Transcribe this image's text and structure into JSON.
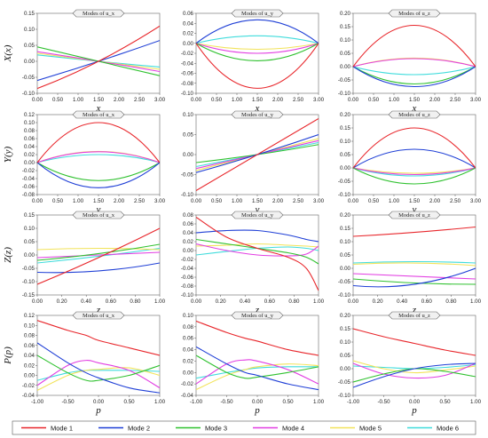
{
  "legend": [
    {
      "name": "Mode 1",
      "color": "#e8262b"
    },
    {
      "name": "Mode 2",
      "color": "#1f3fd6"
    },
    {
      "name": "Mode 3",
      "color": "#2fc12f"
    },
    {
      "name": "Mode 4",
      "color": "#e23ee2"
    },
    {
      "name": "Mode 5",
      "color": "#f2e35a"
    },
    {
      "name": "Mode 6",
      "color": "#3fdcdc"
    }
  ],
  "chart_data": [
    {
      "type": "line",
      "row": 0,
      "col": 0,
      "title": "Modes of u_x",
      "xlabel": "x",
      "ylabel": "X(x)",
      "xlim": [
        0,
        3
      ],
      "ylim": [
        -0.1,
        0.15
      ],
      "xticks": [
        0,
        0.5,
        1,
        1.5,
        2,
        2.5,
        3
      ],
      "yticks": [
        -0.1,
        -0.05,
        0,
        0.05,
        0.1,
        0.15
      ],
      "xfmt": 2,
      "yfmt": 2,
      "x": [
        0,
        1.5,
        3
      ],
      "series": [
        {
          "name": "Mode 1",
          "y": [
            -0.085,
            0.0,
            0.11
          ]
        },
        {
          "name": "Mode 2",
          "y": [
            -0.06,
            0.0,
            0.065
          ]
        },
        {
          "name": "Mode 3",
          "y": [
            0.045,
            0.0,
            -0.045
          ]
        },
        {
          "name": "Mode 4",
          "y": [
            0.03,
            0.0,
            -0.032
          ]
        },
        {
          "name": "Mode 5",
          "y": [
            0.025,
            0.0,
            -0.025
          ]
        },
        {
          "name": "Mode 6",
          "y": [
            0.02,
            0.0,
            -0.018
          ]
        }
      ]
    },
    {
      "type": "line",
      "row": 0,
      "col": 1,
      "title": "Modes of u_y",
      "xlabel": "x",
      "ylabel": "",
      "xlim": [
        0,
        3
      ],
      "ylim": [
        -0.1,
        0.06
      ],
      "xticks": [
        0,
        0.5,
        1,
        1.5,
        2,
        2.5,
        3
      ],
      "yticks": [
        -0.1,
        -0.08,
        -0.06,
        -0.04,
        -0.02,
        0,
        0.02,
        0.04,
        0.06
      ],
      "xfmt": 2,
      "yfmt": 2,
      "x": [
        0,
        1.5,
        3
      ],
      "series": [
        {
          "name": "Mode 1",
          "y": [
            0,
            -0.09,
            0
          ]
        },
        {
          "name": "Mode 2",
          "y": [
            0,
            0.047,
            0
          ]
        },
        {
          "name": "Mode 3",
          "y": [
            0,
            -0.035,
            0
          ]
        },
        {
          "name": "Mode 4",
          "y": [
            0,
            -0.02,
            0
          ]
        },
        {
          "name": "Mode 5",
          "y": [
            0,
            -0.012,
            0
          ]
        },
        {
          "name": "Mode 6",
          "y": [
            0,
            0.015,
            0
          ]
        }
      ]
    },
    {
      "type": "line",
      "row": 0,
      "col": 2,
      "title": "Modes of u_z",
      "xlabel": "x",
      "ylabel": "",
      "xlim": [
        0,
        3
      ],
      "ylim": [
        -0.1,
        0.2
      ],
      "xticks": [
        0,
        0.5,
        1,
        1.5,
        2,
        2.5,
        3
      ],
      "yticks": [
        -0.1,
        -0.05,
        0,
        0.05,
        0.1,
        0.15,
        0.2
      ],
      "xfmt": 2,
      "yfmt": 2,
      "x": [
        0,
        1.5,
        3
      ],
      "series": [
        {
          "name": "Mode 1",
          "y": [
            0,
            0.155,
            0
          ]
        },
        {
          "name": "Mode 2",
          "y": [
            0,
            -0.075,
            0
          ]
        },
        {
          "name": "Mode 3",
          "y": [
            0,
            -0.065,
            0
          ]
        },
        {
          "name": "Mode 4",
          "y": [
            0,
            0.03,
            0
          ]
        },
        {
          "name": "Mode 5",
          "y": [
            0,
            0.032,
            0
          ]
        },
        {
          "name": "Mode 6",
          "y": [
            0,
            -0.03,
            0
          ]
        }
      ]
    },
    {
      "type": "line",
      "row": 1,
      "col": 0,
      "title": "Modes of u_x",
      "xlabel": "y",
      "ylabel": "Y(y)",
      "xlim": [
        0,
        3
      ],
      "ylim": [
        -0.08,
        0.12
      ],
      "xticks": [
        0,
        0.5,
        1,
        1.5,
        2,
        2.5,
        3
      ],
      "yticks": [
        -0.08,
        -0.06,
        -0.04,
        -0.02,
        0,
        0.02,
        0.04,
        0.06,
        0.08,
        0.1,
        0.12
      ],
      "xfmt": 2,
      "yfmt": 2,
      "x": [
        0,
        1.5,
        3
      ],
      "series": [
        {
          "name": "Mode 1",
          "y": [
            0,
            0.1,
            0
          ]
        },
        {
          "name": "Mode 2",
          "y": [
            0,
            -0.063,
            0
          ]
        },
        {
          "name": "Mode 3",
          "y": [
            0,
            -0.045,
            0
          ]
        },
        {
          "name": "Mode 4",
          "y": [
            0,
            0.027,
            0
          ]
        },
        {
          "name": "Mode 5",
          "y": [
            0,
            0.028,
            0
          ]
        },
        {
          "name": "Mode 6",
          "y": [
            0,
            0.02,
            0
          ]
        }
      ]
    },
    {
      "type": "line",
      "row": 1,
      "col": 1,
      "title": "Modes of u_y",
      "xlabel": "y",
      "ylabel": "",
      "xlim": [
        0,
        3
      ],
      "ylim": [
        -0.1,
        0.1
      ],
      "xticks": [
        0,
        0.5,
        1,
        1.5,
        2,
        2.5,
        3
      ],
      "yticks": [
        -0.1,
        -0.05,
        0,
        0.05,
        0.1
      ],
      "xfmt": 2,
      "yfmt": 2,
      "x": [
        0,
        1.5,
        3
      ],
      "series": [
        {
          "name": "Mode 1",
          "y": [
            -0.09,
            0,
            0.09
          ]
        },
        {
          "name": "Mode 2",
          "y": [
            -0.045,
            0,
            0.05
          ]
        },
        {
          "name": "Mode 3",
          "y": [
            -0.02,
            0,
            0.025
          ]
        },
        {
          "name": "Mode 4",
          "y": [
            -0.035,
            0,
            0.035
          ]
        },
        {
          "name": "Mode 5",
          "y": [
            -0.04,
            0,
            0.04
          ]
        },
        {
          "name": "Mode 6",
          "y": [
            -0.03,
            0,
            0.03
          ]
        }
      ]
    },
    {
      "type": "line",
      "row": 1,
      "col": 2,
      "title": "Modes of u_z",
      "xlabel": "y",
      "ylabel": "",
      "xlim": [
        0,
        3
      ],
      "ylim": [
        -0.1,
        0.2
      ],
      "xticks": [
        0,
        0.5,
        1,
        1.5,
        2,
        2.5,
        3
      ],
      "yticks": [
        -0.1,
        -0.05,
        0,
        0.05,
        0.1,
        0.15,
        0.2
      ],
      "xfmt": 2,
      "yfmt": 2,
      "x": [
        0,
        1.5,
        3
      ],
      "series": [
        {
          "name": "Mode 1",
          "y": [
            0,
            0.15,
            0
          ]
        },
        {
          "name": "Mode 2",
          "y": [
            0,
            0.07,
            0
          ]
        },
        {
          "name": "Mode 3",
          "y": [
            0,
            -0.06,
            0
          ]
        },
        {
          "name": "Mode 4",
          "y": [
            0,
            -0.025,
            0
          ]
        },
        {
          "name": "Mode 5",
          "y": [
            0,
            -0.02,
            0
          ]
        },
        {
          "name": "Mode 6",
          "y": [
            0,
            -0.03,
            0
          ]
        }
      ]
    },
    {
      "type": "line",
      "row": 2,
      "col": 0,
      "title": "Modes of u_x",
      "xlabel": "z",
      "ylabel": "Z(z)",
      "xlim": [
        0,
        1
      ],
      "ylim": [
        -0.15,
        0.15
      ],
      "xticks": [
        0,
        0.2,
        0.4,
        0.6,
        0.8,
        1
      ],
      "yticks": [
        -0.15,
        -0.1,
        -0.05,
        0,
        0.05,
        0.1,
        0.15
      ],
      "xfmt": 2,
      "yfmt": 2,
      "x": [
        0,
        0.5,
        1
      ],
      "series": [
        {
          "name": "Mode 1",
          "y": [
            -0.11,
            -0.01,
            0.1
          ]
        },
        {
          "name": "Mode 2",
          "y": [
            -0.065,
            -0.06,
            -0.03
          ]
        },
        {
          "name": "Mode 3",
          "y": [
            -0.02,
            0.005,
            0.04
          ]
        },
        {
          "name": "Mode 4",
          "y": [
            -0.01,
            0.0,
            0.01
          ]
        },
        {
          "name": "Mode 5",
          "y": [
            0.02,
            0.025,
            0.02
          ]
        },
        {
          "name": "Mode 6",
          "y": [
            -0.03,
            -0.005,
            0.025
          ]
        }
      ]
    },
    {
      "type": "line",
      "row": 2,
      "col": 1,
      "title": "Modes of u_y",
      "xlabel": "z",
      "ylabel": "",
      "xlim": [
        0,
        1
      ],
      "ylim": [
        -0.1,
        0.08
      ],
      "xticks": [
        0,
        0.2,
        0.4,
        0.6,
        0.8,
        1
      ],
      "yticks": [
        -0.1,
        -0.08,
        -0.06,
        -0.04,
        -0.02,
        0,
        0.02,
        0.04,
        0.06,
        0.08
      ],
      "xfmt": 2,
      "yfmt": 2,
      "x": [
        0,
        0.25,
        0.5,
        0.75,
        0.9,
        1
      ],
      "series": [
        {
          "name": "Mode 1",
          "y": [
            0.075,
            0.03,
            0.005,
            -0.015,
            -0.04,
            -0.09
          ]
        },
        {
          "name": "Mode 2",
          "y": [
            0.04,
            0.045,
            0.045,
            0.035,
            0.025,
            0.02
          ]
        },
        {
          "name": "Mode 3",
          "y": [
            0.025,
            0.015,
            0.005,
            -0.005,
            -0.015,
            -0.03
          ]
        },
        {
          "name": "Mode 4",
          "y": [
            0.015,
            0.0,
            -0.01,
            -0.012,
            -0.008,
            0.01
          ]
        },
        {
          "name": "Mode 5",
          "y": [
            0.01,
            0.012,
            0.015,
            0.012,
            0.01,
            0.008
          ]
        },
        {
          "name": "Mode 6",
          "y": [
            -0.01,
            -0.002,
            0.005,
            0.008,
            0.005,
            0.0
          ]
        }
      ]
    },
    {
      "type": "line",
      "row": 2,
      "col": 2,
      "title": "Modes of u_z",
      "xlabel": "z",
      "ylabel": "",
      "xlim": [
        0,
        1
      ],
      "ylim": [
        -0.1,
        0.2
      ],
      "xticks": [
        0,
        0.2,
        0.4,
        0.6,
        0.8,
        1
      ],
      "yticks": [
        -0.1,
        -0.05,
        0,
        0.05,
        0.1,
        0.15,
        0.2
      ],
      "xfmt": 2,
      "yfmt": 2,
      "x": [
        0,
        0.5,
        1
      ],
      "series": [
        {
          "name": "Mode 1",
          "y": [
            0.12,
            0.135,
            0.155
          ]
        },
        {
          "name": "Mode 2",
          "y": [
            -0.065,
            -0.06,
            0.0
          ]
        },
        {
          "name": "Mode 3",
          "y": [
            -0.04,
            -0.055,
            -0.06
          ]
        },
        {
          "name": "Mode 4",
          "y": [
            -0.02,
            -0.03,
            -0.04
          ]
        },
        {
          "name": "Mode 5",
          "y": [
            0.015,
            0.02,
            0.01
          ]
        },
        {
          "name": "Mode 6",
          "y": [
            0.02,
            0.025,
            0.02
          ]
        }
      ]
    },
    {
      "type": "line",
      "row": 3,
      "col": 0,
      "title": "Modes of u_x",
      "xlabel": "p",
      "ylabel": "P(p)",
      "xlim": [
        -1,
        1
      ],
      "ylim": [
        -0.04,
        0.12
      ],
      "xticks": [
        -1,
        -0.5,
        0,
        0.5,
        1
      ],
      "yticks": [
        -0.04,
        -0.02,
        0,
        0.02,
        0.04,
        0.06,
        0.08,
        0.1,
        0.12
      ],
      "xfmt": 2,
      "yfmt": 2,
      "x": [
        -1,
        -0.5,
        -0.2,
        0,
        0.5,
        1
      ],
      "series": [
        {
          "name": "Mode 1",
          "y": [
            0.11,
            0.09,
            0.08,
            0.07,
            0.055,
            0.04
          ]
        },
        {
          "name": "Mode 2",
          "y": [
            0.065,
            0.025,
            0.005,
            -0.005,
            -0.025,
            -0.035
          ]
        },
        {
          "name": "Mode 3",
          "y": [
            0.04,
            0.005,
            -0.01,
            -0.01,
            0.0,
            0.02
          ]
        },
        {
          "name": "Mode 4",
          "y": [
            -0.02,
            0.02,
            0.03,
            0.025,
            0.01,
            -0.025
          ]
        },
        {
          "name": "Mode 5",
          "y": [
            -0.03,
            0.0,
            0.01,
            0.012,
            0.015,
            0.0
          ]
        },
        {
          "name": "Mode 6",
          "y": [
            -0.01,
            0.005,
            0.01,
            0.01,
            0.01,
            0.008
          ]
        }
      ]
    },
    {
      "type": "line",
      "row": 3,
      "col": 1,
      "title": "Modes of u_y",
      "xlabel": "p",
      "ylabel": "",
      "xlim": [
        -1,
        1
      ],
      "ylim": [
        -0.04,
        0.1
      ],
      "xticks": [
        -1,
        -0.5,
        0,
        0.5,
        1
      ],
      "yticks": [
        -0.04,
        -0.02,
        0,
        0.02,
        0.04,
        0.06,
        0.08,
        0.1
      ],
      "xfmt": 2,
      "yfmt": 2,
      "x": [
        -1,
        -0.5,
        -0.2,
        0,
        0.5,
        1
      ],
      "series": [
        {
          "name": "Mode 1",
          "y": [
            0.09,
            0.07,
            0.06,
            0.055,
            0.04,
            0.03
          ]
        },
        {
          "name": "Mode 2",
          "y": [
            0.045,
            0.015,
            0.0,
            -0.005,
            -0.02,
            -0.03
          ]
        },
        {
          "name": "Mode 3",
          "y": [
            0.03,
            0.0,
            -0.01,
            -0.008,
            0.0,
            0.01
          ]
        },
        {
          "name": "Mode 4",
          "y": [
            -0.02,
            0.015,
            0.022,
            0.02,
            0.005,
            -0.02
          ]
        },
        {
          "name": "Mode 5",
          "y": [
            -0.03,
            -0.005,
            0.005,
            0.01,
            0.015,
            0.012
          ]
        },
        {
          "name": "Mode 6",
          "y": [
            -0.01,
            0.0,
            0.005,
            0.008,
            0.01,
            0.01
          ]
        }
      ]
    },
    {
      "type": "line",
      "row": 3,
      "col": 2,
      "title": "Modes of u_z",
      "xlabel": "p",
      "ylabel": "",
      "xlim": [
        -1,
        1
      ],
      "ylim": [
        -0.1,
        0.2
      ],
      "xticks": [
        -1,
        -0.5,
        0,
        0.5,
        1
      ],
      "yticks": [
        -0.1,
        -0.05,
        0,
        0.05,
        0.1,
        0.15,
        0.2
      ],
      "xfmt": 2,
      "yfmt": 2,
      "x": [
        -1,
        -0.5,
        0,
        0.5,
        1
      ],
      "series": [
        {
          "name": "Mode 1",
          "y": [
            0.15,
            0.12,
            0.095,
            0.07,
            0.05
          ]
        },
        {
          "name": "Mode 2",
          "y": [
            -0.07,
            -0.03,
            0.0,
            0.015,
            0.02
          ]
        },
        {
          "name": "Mode 3",
          "y": [
            -0.05,
            -0.02,
            0.0,
            -0.01,
            -0.03
          ]
        },
        {
          "name": "Mode 4",
          "y": [
            0.02,
            -0.02,
            -0.035,
            -0.025,
            0.02
          ]
        },
        {
          "name": "Mode 5",
          "y": [
            0.03,
            0.0,
            -0.015,
            -0.005,
            0.01
          ]
        },
        {
          "name": "Mode 6",
          "y": [
            0.01,
            0.005,
            0.0,
            0.005,
            0.015
          ]
        }
      ]
    }
  ]
}
